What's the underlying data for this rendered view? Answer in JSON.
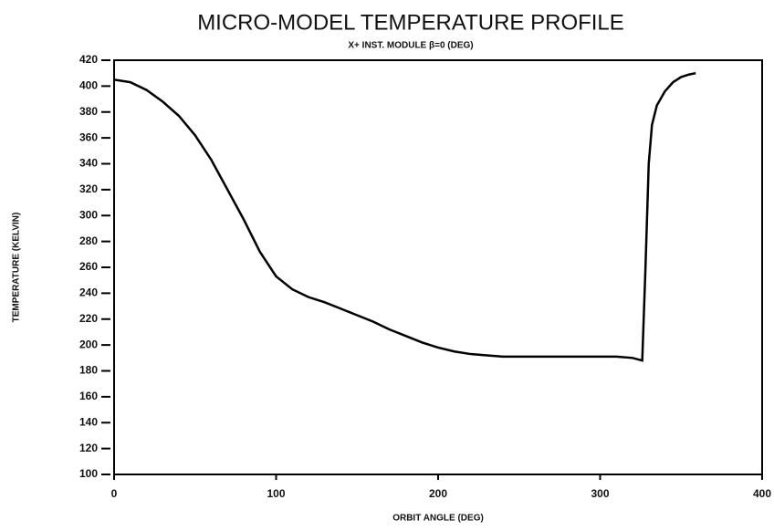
{
  "chart_data": {
    "type": "line",
    "title": "MICRO-MODEL TEMPERATURE PROFILE",
    "subtitle": "X+ INST. MODULE β=0 (DEG)",
    "x_label": "ORBIT ANGLE (DEG)",
    "y_label": "TEMPERATURE (KELVIN)",
    "xlim": [
      0,
      400
    ],
    "ylim": [
      100,
      420
    ],
    "xticks": [
      0,
      100,
      200,
      300,
      400
    ],
    "yticks": [
      100,
      120,
      140,
      160,
      180,
      200,
      220,
      240,
      260,
      280,
      300,
      320,
      340,
      360,
      380,
      400,
      420
    ],
    "series": [
      {
        "color": "#000000",
        "x": [
          0,
          10,
          20,
          30,
          40,
          50,
          60,
          70,
          80,
          90,
          100,
          110,
          120,
          130,
          140,
          150,
          160,
          170,
          180,
          190,
          200,
          210,
          220,
          230,
          240,
          250,
          260,
          270,
          280,
          290,
          300,
          310,
          320,
          326,
          328,
          330,
          332,
          335,
          340,
          345,
          350,
          355,
          359
        ],
        "values": [
          405,
          403,
          397,
          388,
          377,
          362,
          343,
          320,
          297,
          272,
          253,
          243,
          237,
          233,
          228,
          223,
          218,
          212,
          207,
          202,
          198,
          195,
          193,
          192,
          191,
          191,
          191,
          191,
          191,
          191,
          191,
          191,
          190,
          188,
          260,
          340,
          370,
          385,
          396,
          403,
          407,
          409,
          410
        ]
      }
    ]
  }
}
